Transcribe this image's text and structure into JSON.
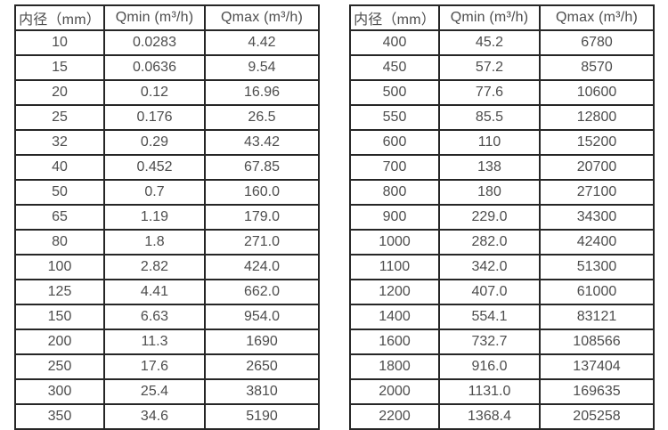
{
  "page": {
    "background": "#ffffff",
    "text_color": "#4d4d4d",
    "border_color": "#262626"
  },
  "tables": [
    {
      "name": "flow-rate-table-small-diameters",
      "headers": [
        "内径（mm）",
        "Qmin (m³/h)",
        "Qmax (m³/h)"
      ],
      "rows": [
        [
          "10",
          "0.0283",
          "4.42"
        ],
        [
          "15",
          "0.0636",
          "9.54"
        ],
        [
          "20",
          "0.12",
          "16.96"
        ],
        [
          "25",
          "0.176",
          "26.5"
        ],
        [
          "32",
          "0.29",
          "43.42"
        ],
        [
          "40",
          "0.452",
          "67.85"
        ],
        [
          "50",
          "0.7",
          "160.0"
        ],
        [
          "65",
          "1.19",
          "179.0"
        ],
        [
          "80",
          "1.8",
          "271.0"
        ],
        [
          "100",
          "2.82",
          "424.0"
        ],
        [
          "125",
          "4.41",
          "662.0"
        ],
        [
          "150",
          "6.63",
          "954.0"
        ],
        [
          "200",
          "11.3",
          "1690"
        ],
        [
          "250",
          "17.6",
          "2650"
        ],
        [
          "300",
          "25.4",
          "3810"
        ],
        [
          "350",
          "34.6",
          "5190"
        ]
      ]
    },
    {
      "name": "flow-rate-table-large-diameters",
      "headers": [
        "内径（mm）",
        "Qmin (m³/h)",
        "Qmax (m³/h)"
      ],
      "rows": [
        [
          "400",
          "45.2",
          "6780"
        ],
        [
          "450",
          "57.2",
          "8570"
        ],
        [
          "500",
          "77.6",
          "10600"
        ],
        [
          "550",
          "85.5",
          "12800"
        ],
        [
          "600",
          "110",
          "15200"
        ],
        [
          "700",
          "138",
          "20700"
        ],
        [
          "800",
          "180",
          "27100"
        ],
        [
          "900",
          "229.0",
          "34300"
        ],
        [
          "1000",
          "282.0",
          "42400"
        ],
        [
          "1100",
          "342.0",
          "51300"
        ],
        [
          "1200",
          "407.0",
          "61000"
        ],
        [
          "1400",
          "554.1",
          "83121"
        ],
        [
          "1600",
          "732.7",
          "108566"
        ],
        [
          "1800",
          "916.0",
          "137404"
        ],
        [
          "2000",
          "1131.0",
          "169635"
        ],
        [
          "2200",
          "1368.4",
          "205258"
        ]
      ]
    }
  ]
}
